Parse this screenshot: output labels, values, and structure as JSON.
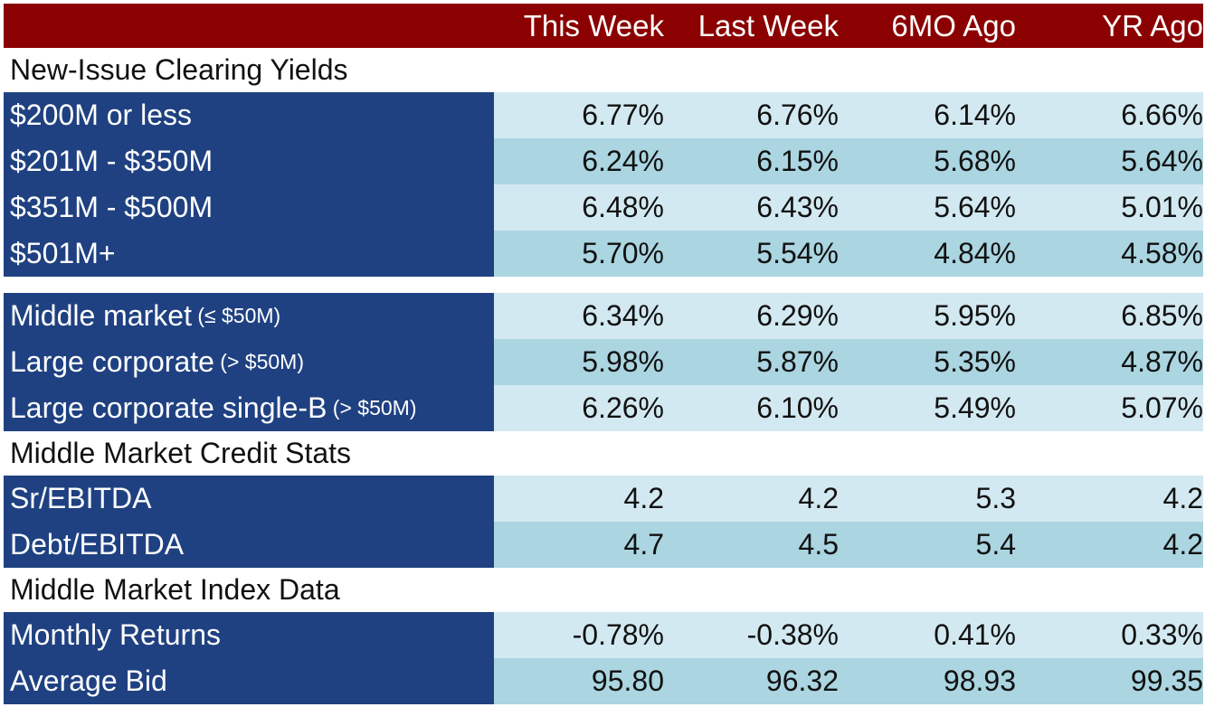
{
  "chart_data": {
    "type": "table",
    "columns": [
      "This Week",
      "Last Week",
      "6MO Ago",
      "YR Ago"
    ],
    "sections": [
      {
        "title": "New-Issue Clearing Yields",
        "rows": [
          {
            "label": "$200M or less",
            "qualifier": "",
            "values": [
              "6.77%",
              "6.76%",
              "6.14%",
              "6.66%"
            ]
          },
          {
            "label": "$201M - $350M",
            "qualifier": "",
            "values": [
              "6.24%",
              "6.15%",
              "5.68%",
              "5.64%"
            ]
          },
          {
            "label": "$351M - $500M",
            "qualifier": "",
            "values": [
              "6.48%",
              "6.43%",
              "5.64%",
              "5.01%"
            ]
          },
          {
            "label": "$501M+",
            "qualifier": "",
            "values": [
              "5.70%",
              "5.54%",
              "4.84%",
              "4.58%"
            ]
          }
        ]
      },
      {
        "title": "",
        "rows": [
          {
            "label": "Middle market",
            "qualifier": "(≤ $50M)",
            "values": [
              "6.34%",
              "6.29%",
              "5.95%",
              "6.85%"
            ]
          },
          {
            "label": "Large corporate",
            "qualifier": "(> $50M)",
            "values": [
              "5.98%",
              "5.87%",
              "5.35%",
              "4.87%"
            ]
          },
          {
            "label": "Large corporate single-B",
            "qualifier": "(> $50M)",
            "values": [
              "6.26%",
              "6.10%",
              "5.49%",
              "5.07%"
            ]
          }
        ]
      },
      {
        "title": "Middle Market Credit Stats",
        "rows": [
          {
            "label": "Sr/EBITDA",
            "qualifier": "",
            "values": [
              "4.2",
              "4.2",
              "5.3",
              "4.2"
            ]
          },
          {
            "label": "Debt/EBITDA",
            "qualifier": "",
            "values": [
              "4.7",
              "4.5",
              "5.4",
              "4.2"
            ]
          }
        ]
      },
      {
        "title": "Middle Market Index Data",
        "rows": [
          {
            "label": "Monthly Returns",
            "qualifier": "",
            "values": [
              "-0.78%",
              "-0.38%",
              "0.41%",
              "0.33%"
            ]
          },
          {
            "label": "Average Bid",
            "qualifier": "",
            "values": [
              "95.80",
              "96.32",
              "98.93",
              "99.35"
            ]
          }
        ]
      }
    ]
  },
  "colors": {
    "header_bg": "#8b0000",
    "label_bg": "#1f4181",
    "value_light": "#d3e9f1",
    "value_dark": "#aad5e1"
  }
}
